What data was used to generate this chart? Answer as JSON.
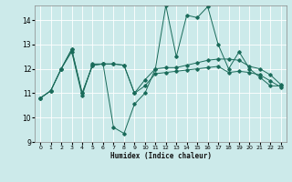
{
  "xlabel": "Humidex (Indice chaleur)",
  "xlim": [
    -0.5,
    23.5
  ],
  "ylim": [
    9,
    14.6
  ],
  "yticks": [
    9,
    10,
    11,
    12,
    13,
    14
  ],
  "xticks": [
    0,
    1,
    2,
    3,
    4,
    5,
    6,
    7,
    8,
    9,
    10,
    11,
    12,
    13,
    14,
    15,
    16,
    17,
    18,
    19,
    20,
    21,
    22,
    23
  ],
  "bg_color": "#cceaea",
  "grid_color": "#ffffff",
  "line_color": "#1a6b5a",
  "line1_y": [
    10.8,
    11.1,
    12.0,
    12.7,
    10.9,
    12.2,
    12.2,
    9.6,
    9.35,
    10.55,
    11.0,
    12.0,
    14.6,
    12.5,
    14.2,
    14.1,
    14.55,
    13.0,
    12.0,
    12.7,
    12.0,
    11.65,
    11.3,
    11.3
  ],
  "line2_y": [
    10.8,
    11.1,
    12.0,
    12.8,
    11.0,
    12.15,
    12.2,
    12.2,
    12.15,
    11.0,
    11.55,
    12.0,
    12.05,
    12.05,
    12.15,
    12.25,
    12.35,
    12.4,
    12.4,
    12.35,
    12.1,
    12.0,
    11.75,
    11.35
  ],
  "line3_y": [
    10.8,
    11.1,
    12.0,
    12.8,
    11.0,
    12.15,
    12.2,
    12.2,
    12.15,
    11.0,
    11.3,
    11.8,
    11.85,
    11.9,
    11.95,
    12.0,
    12.05,
    12.1,
    11.85,
    11.9,
    11.85,
    11.75,
    11.5,
    11.25
  ]
}
